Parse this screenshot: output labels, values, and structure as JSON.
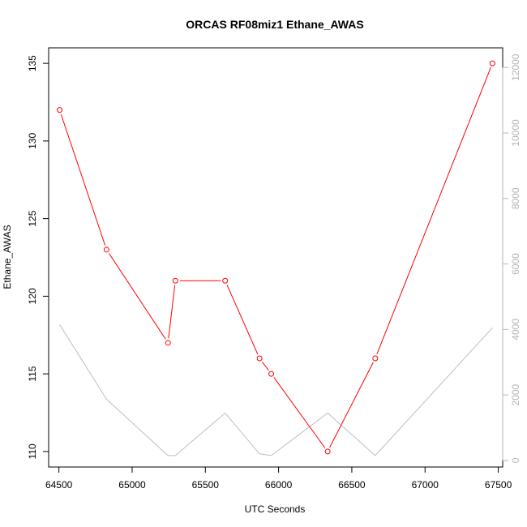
{
  "chart_data": {
    "type": "line",
    "title": "ORCAS RF08miz1 Ethane_AWAS",
    "xlabel": "UTC Seconds",
    "ylabel": "Ethane_AWAS",
    "xlim": [
      64430,
      67530
    ],
    "ylim": [
      109.0,
      136.0
    ],
    "y2lim": [
      -200,
      12600
    ],
    "x_ticks": [
      64500,
      65000,
      65500,
      66000,
      66500,
      67000,
      67500
    ],
    "y_ticks": [
      110,
      115,
      120,
      125,
      130,
      135
    ],
    "y2_ticks": [
      0,
      2000,
      4000,
      6000,
      8000,
      10000,
      12000
    ],
    "grid": false,
    "colors": {
      "primary_series": "#ff0000",
      "secondary_series": "#bebebe",
      "right_axis": "#b5b5b5",
      "frame": "#000000"
    },
    "series": [
      {
        "axis": "left",
        "style": "line+points",
        "color": "#ff0000",
        "x": [
          64505,
          64825,
          65245,
          65295,
          65635,
          65870,
          65950,
          66335,
          66660,
          67460
        ],
        "y": [
          132,
          123,
          117,
          121,
          121,
          116,
          115,
          110,
          116,
          135
        ]
      },
      {
        "axis": "right",
        "style": "line",
        "color": "#bebebe",
        "x": [
          64505,
          64825,
          65245,
          65295,
          65635,
          65870,
          65950,
          66335,
          66660,
          67460
        ],
        "y": [
          4150,
          1870,
          150,
          150,
          1450,
          200,
          150,
          1450,
          150,
          4050
        ]
      }
    ]
  }
}
